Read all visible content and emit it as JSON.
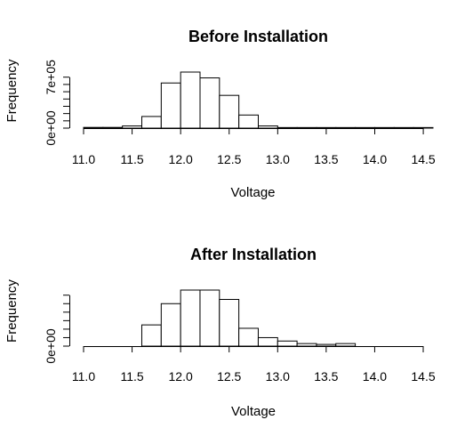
{
  "chart_data": [
    {
      "type": "histogram",
      "title": "Before Installation",
      "xlabel": "Voltage",
      "ylabel": "Frequency",
      "xlim": [
        11.0,
        14.6
      ],
      "ylim": [
        0,
        800000
      ],
      "x_ticks": [
        "11.0",
        "11.5",
        "12.0",
        "12.5",
        "13.0",
        "13.5",
        "14.0",
        "14.5"
      ],
      "y_ticks": [
        0,
        100000,
        200000,
        300000,
        400000,
        500000,
        600000,
        700000
      ],
      "y_tick_labels": [
        "0e+00",
        "7e+05"
      ],
      "bin_edges": [
        11.0,
        11.2,
        11.4,
        11.6,
        11.8,
        12.0,
        12.2,
        12.4,
        12.6,
        12.8,
        13.0,
        13.2,
        13.4,
        13.6,
        13.8,
        14.0,
        14.2,
        14.4,
        14.6
      ],
      "values": [
        10000,
        10000,
        30000,
        160000,
        620000,
        770000,
        690000,
        450000,
        180000,
        30000,
        8000,
        8000,
        8000,
        8000,
        8000,
        8000,
        8000,
        8000
      ]
    },
    {
      "type": "histogram",
      "title": "After Installation",
      "xlabel": "Voltage",
      "ylabel": "Frequency",
      "xlim": [
        11.0,
        14.5
      ],
      "ylim": [
        0,
        80000
      ],
      "x_ticks": [
        "11.0",
        "11.5",
        "12.0",
        "12.5",
        "13.0",
        "13.5",
        "14.0",
        "14.5"
      ],
      "y_ticks": [
        0,
        10000,
        20000,
        30000,
        40000,
        50000,
        60000
      ],
      "y_tick_labels": [
        "0e+00"
      ],
      "bin_edges": [
        11.6,
        11.8,
        12.0,
        12.2,
        12.4,
        12.6,
        12.8,
        13.0,
        13.2,
        13.4,
        13.6,
        13.8
      ],
      "values": [
        25000,
        50000,
        66000,
        66000,
        55000,
        21000,
        10000,
        6000,
        3000,
        2000,
        3000
      ]
    }
  ]
}
